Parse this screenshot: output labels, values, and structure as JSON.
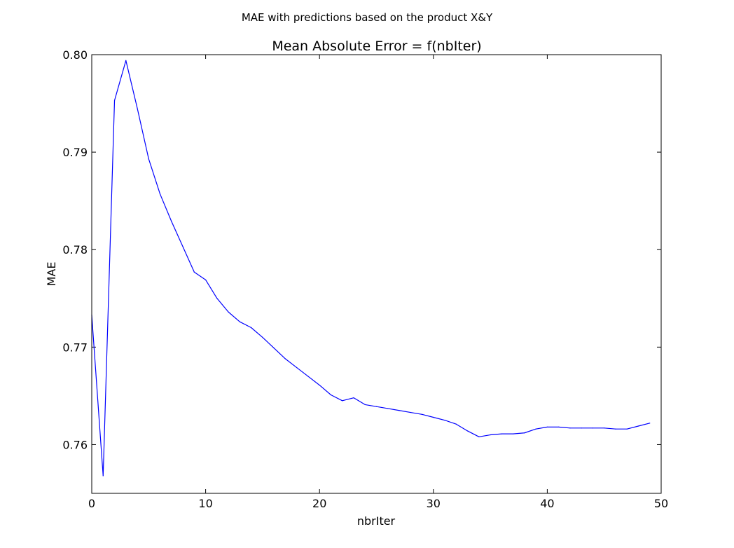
{
  "figure": {
    "suptitle": "MAE with predictions based on the product X&Y"
  },
  "chart_data": {
    "type": "line",
    "title": "Mean Absolute Error = f(nbIter)",
    "xlabel": "nbrIter",
    "ylabel": "MAE",
    "xlim": [
      0,
      50
    ],
    "ylim": [
      0.755,
      0.8
    ],
    "x_ticks": [
      0,
      10,
      20,
      30,
      40,
      50
    ],
    "x_tick_labels": [
      "0",
      "10",
      "20",
      "30",
      "40",
      "50"
    ],
    "y_ticks": [
      0.76,
      0.77,
      0.78,
      0.79,
      0.8
    ],
    "y_tick_labels": [
      "0.76",
      "0.77",
      "0.78",
      "0.79",
      "0.80"
    ],
    "grid": false,
    "line_color": "#0000ff",
    "series": [
      {
        "x": [
          0,
          1,
          2,
          3,
          4,
          5,
          6,
          7,
          8,
          9,
          10,
          11,
          12,
          13,
          14,
          15,
          16,
          17,
          18,
          19,
          20,
          21,
          22,
          23,
          24,
          25,
          26,
          27,
          28,
          29,
          30,
          31,
          32,
          33,
          34,
          35,
          36,
          37,
          38,
          39,
          40,
          41,
          42,
          43,
          44,
          45,
          46,
          47,
          48,
          49
        ],
        "y": [
          0.7733,
          0.7568,
          0.7953,
          0.7994,
          0.7945,
          0.7893,
          0.7857,
          0.7829,
          0.7803,
          0.7777,
          0.7769,
          0.775,
          0.7736,
          0.7726,
          0.772,
          0.771,
          0.7699,
          0.7688,
          0.7679,
          0.767,
          0.7661,
          0.7651,
          0.7645,
          0.7648,
          0.7641,
          0.7639,
          0.7637,
          0.7635,
          0.7633,
          0.7631,
          0.7628,
          0.7625,
          0.7621,
          0.7614,
          0.7608,
          0.761,
          0.7611,
          0.7611,
          0.7612,
          0.7616,
          0.7618,
          0.7618,
          0.7617,
          0.7617,
          0.7617,
          0.7617,
          0.7616,
          0.7616,
          0.7619,
          0.7622
        ]
      }
    ]
  }
}
